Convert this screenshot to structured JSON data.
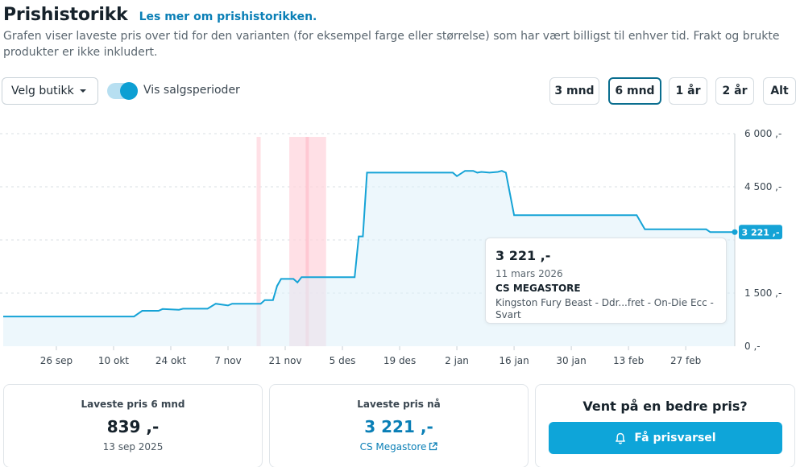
{
  "header": {
    "title": "Prishistorikk",
    "link": "Les mer om prishistorikken.",
    "description": "Grafen viser laveste pris over tid for den varianten (for eksempel farge eller størrelse) som har vært billigst til enhver tid. Frakt og brukte produkter er ikke inkludert."
  },
  "controls": {
    "store_select": "Velg butikk",
    "toggle_label": "Vis salgsperioder",
    "toggle_on": true,
    "ranges": [
      "3 mnd",
      "6 mnd",
      "1 år",
      "2 år",
      "Alt"
    ],
    "active_range": "6 mnd"
  },
  "colors": {
    "line": "#15a3d6",
    "fill": "#dff1fa",
    "sale_period": "#ffd6de",
    "accent": "#0ea5d9"
  },
  "chart_data": {
    "type": "area",
    "x_ticks": [
      "26 sep",
      "10 okt",
      "24 okt",
      "7 nov",
      "21 nov",
      "5 des",
      "19 des",
      "2 jan",
      "16 jan",
      "30 jan",
      "13 feb",
      "27 feb"
    ],
    "y_ticks": [
      "6 000 ,-",
      "4 500 ,-",
      "1 500 ,-",
      "0 ,-"
    ],
    "ylim": [
      0,
      6000
    ],
    "grid": true,
    "current_label": "3 221 ,-",
    "sale_periods": [
      [
        "2025-11-14",
        "2025-11-15"
      ],
      [
        "2025-11-22",
        "2025-12-01"
      ]
    ],
    "series": [
      {
        "points": [
          [
            "2025-09-13",
            839
          ],
          [
            "2025-10-15",
            839
          ],
          [
            "2025-10-17",
            1000
          ],
          [
            "2025-10-21",
            1000
          ],
          [
            "2025-10-22",
            1050
          ],
          [
            "2025-10-26",
            1030
          ],
          [
            "2025-10-27",
            1060
          ],
          [
            "2025-11-02",
            1060
          ],
          [
            "2025-11-04",
            1200
          ],
          [
            "2025-11-07",
            1150
          ],
          [
            "2025-11-08",
            1200
          ],
          [
            "2025-11-15",
            1200
          ],
          [
            "2025-11-16",
            1300
          ],
          [
            "2025-11-18",
            1300
          ],
          [
            "2025-11-19",
            1700
          ],
          [
            "2025-11-20",
            1900
          ],
          [
            "2025-11-23",
            1900
          ],
          [
            "2025-11-24",
            1800
          ],
          [
            "2025-11-25",
            1950
          ],
          [
            "2025-12-08",
            1950
          ],
          [
            "2025-12-09",
            3100
          ],
          [
            "2025-12-10",
            3100
          ],
          [
            "2025-12-11",
            4900
          ],
          [
            "2026-01-01",
            4900
          ],
          [
            "2026-01-02",
            4800
          ],
          [
            "2026-01-04",
            4950
          ],
          [
            "2026-01-06",
            4950
          ],
          [
            "2026-01-07",
            4900
          ],
          [
            "2026-01-08",
            4920
          ],
          [
            "2026-01-10",
            4900
          ],
          [
            "2026-01-12",
            4920
          ],
          [
            "2026-01-13",
            4950
          ],
          [
            "2026-01-14",
            4900
          ],
          [
            "2026-01-16",
            3700
          ],
          [
            "2026-02-15",
            3700
          ],
          [
            "2026-02-17",
            3300
          ],
          [
            "2026-03-04",
            3300
          ],
          [
            "2026-03-05",
            3221
          ],
          [
            "2026-03-11",
            3221
          ]
        ]
      }
    ]
  },
  "tooltip": {
    "price": "3 221 ,-",
    "date": "11 mars 2026",
    "store": "CS MEGASTORE",
    "product": "Kingston Fury Beast - Ddr...fret - On-Die Ecc - Svart"
  },
  "stats": {
    "lowest6": {
      "label": "Laveste pris 6 mnd",
      "value": "839 ,-",
      "date": "13 sep 2025"
    },
    "lowestNow": {
      "label": "Laveste pris nå",
      "value": "3 221 ,-",
      "store": "CS Megastore"
    },
    "alert": {
      "title": "Vent på en bedre pris?",
      "button": "Få prisvarsel"
    }
  }
}
